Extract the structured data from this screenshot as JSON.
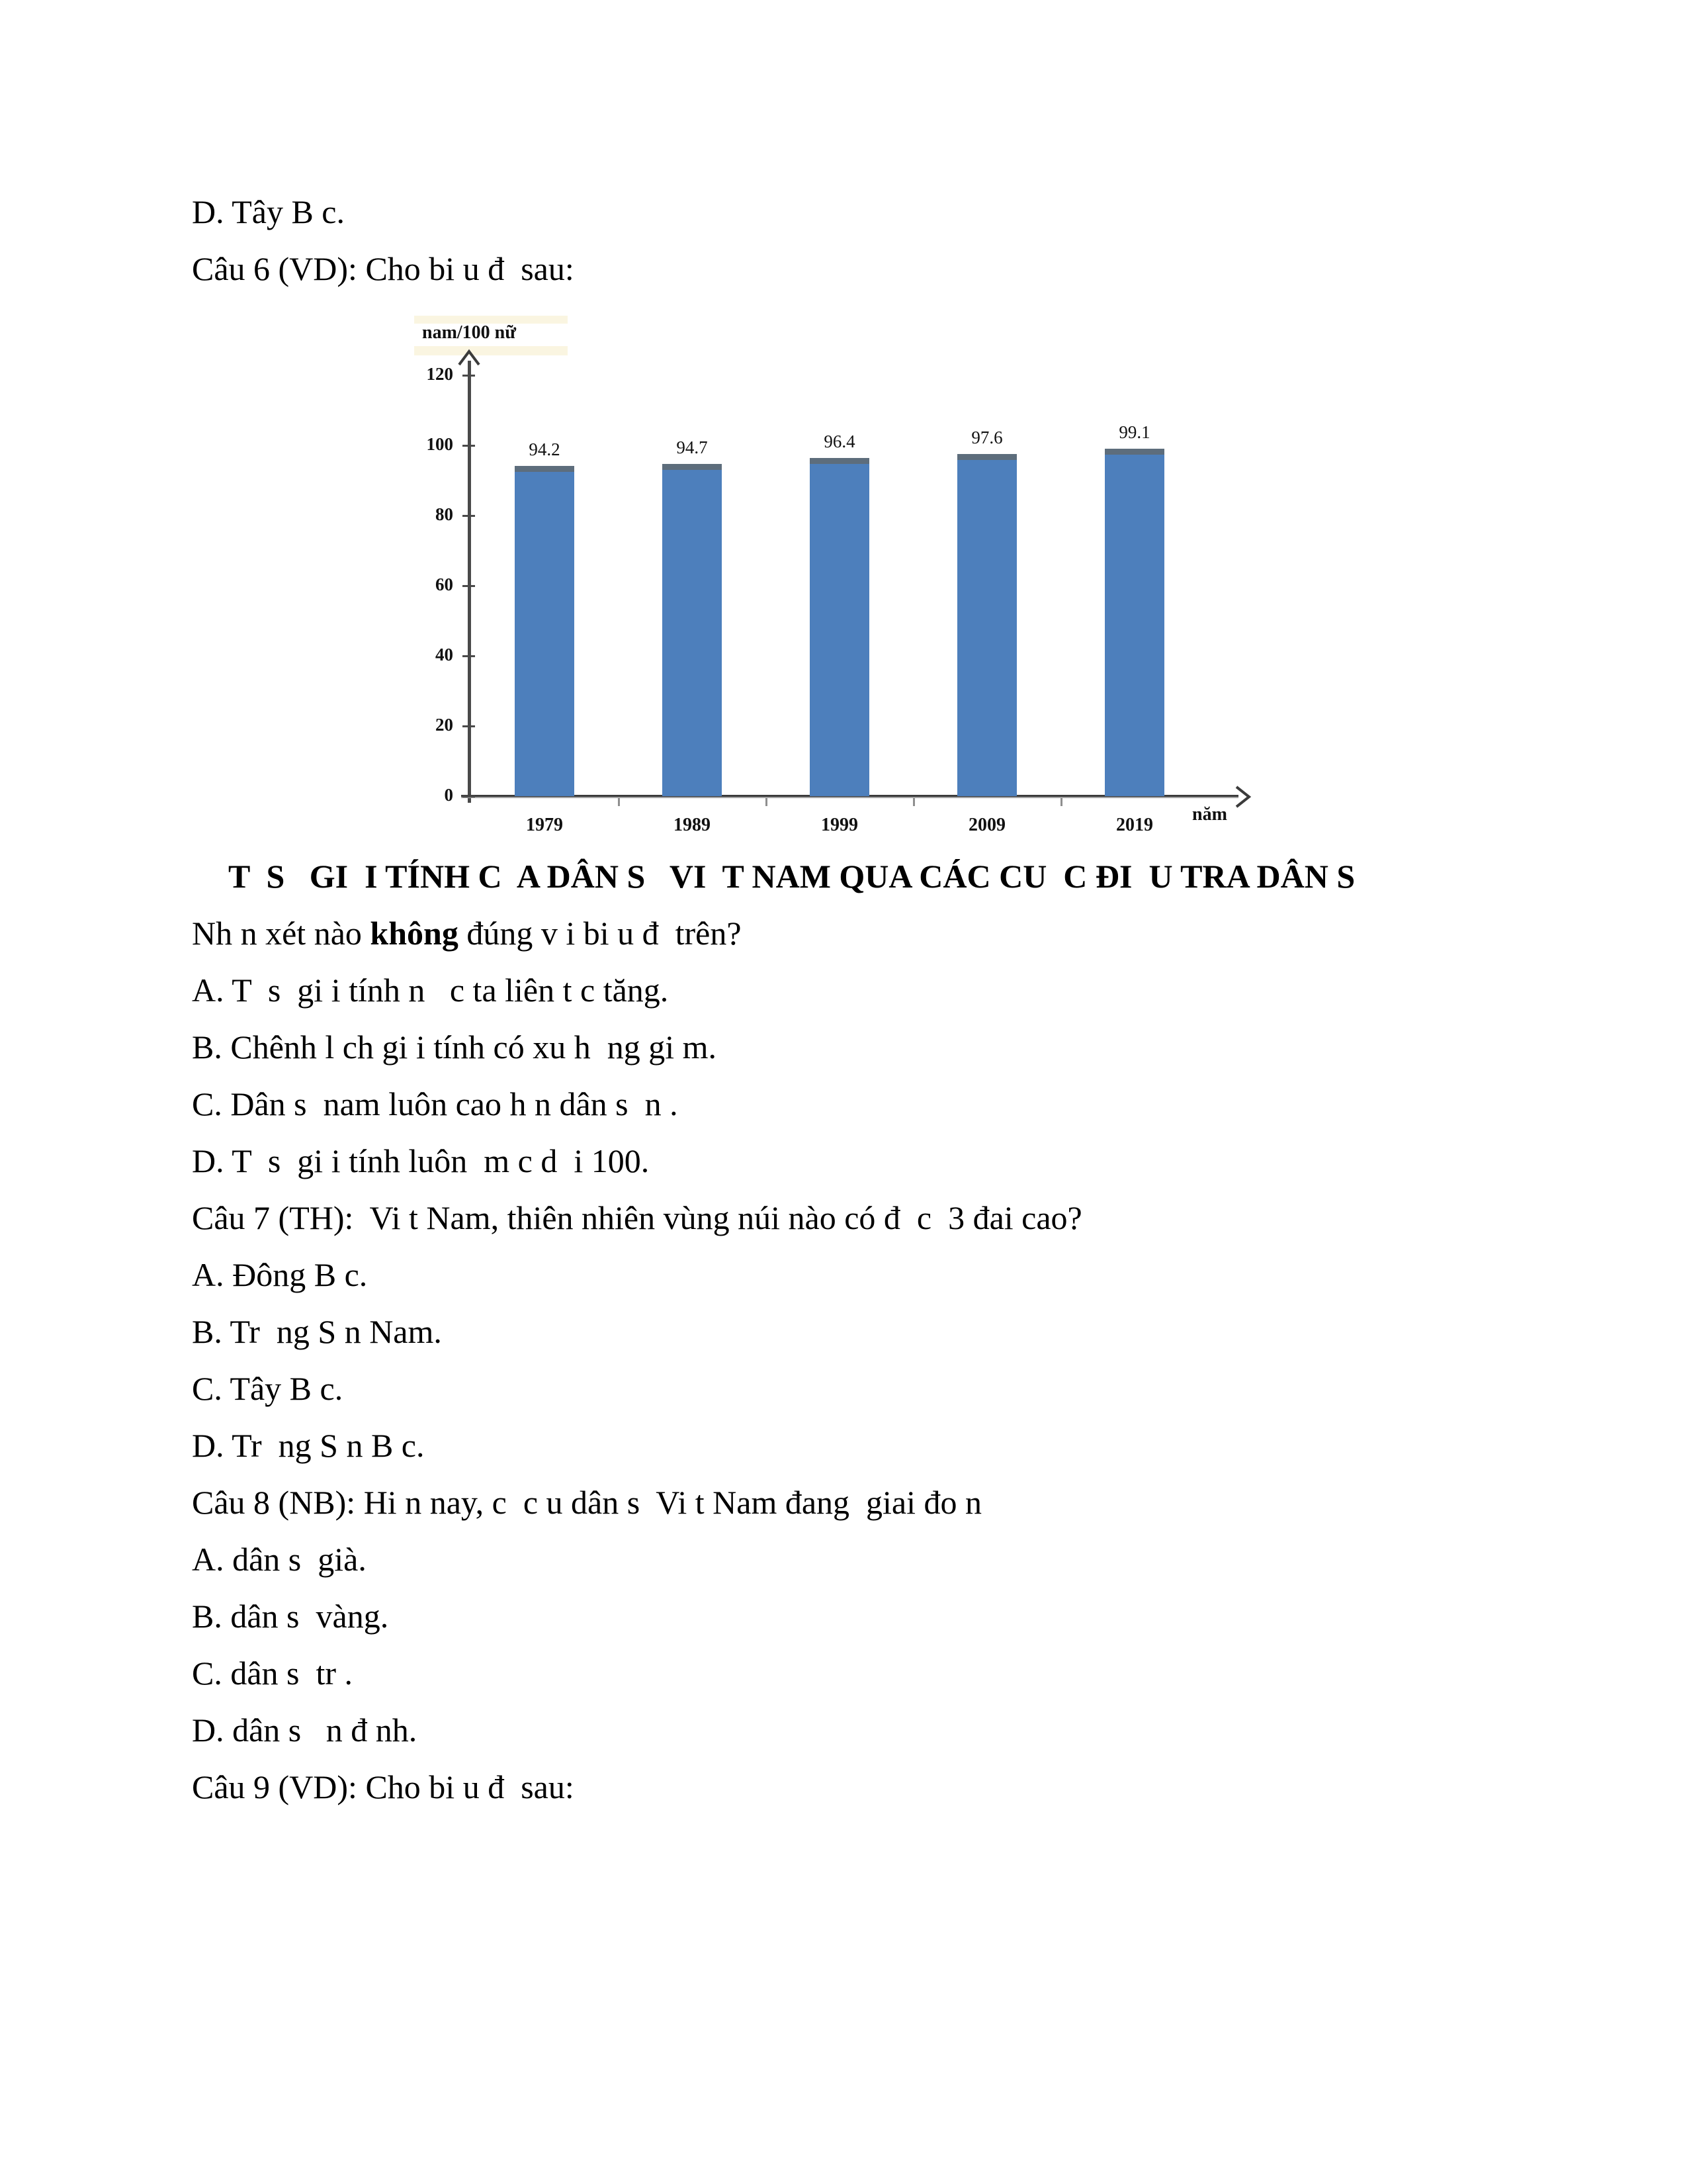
{
  "page": {
    "background": "#ffffff",
    "text_color": "#000000"
  },
  "doc": {
    "lines": [
      {
        "pre": "D. Tây B c."
      },
      {
        "pre": "Câu 6 (VD): Cho bi u đ  sau:"
      },
      {
        "pre": "Nh n xét nào ",
        "bold": "không",
        "post": " đúng v i bi u đ  trên?"
      },
      {
        "pre": "A. T  s  gi i tính n   c ta liên t c tăng."
      },
      {
        "pre": "B. Chênh l ch gi i tính có xu h  ng gi m."
      },
      {
        "pre": "C. Dân s  nam luôn cao h n dân s  n ."
      },
      {
        "pre": "D. T  s  gi i tính luôn  m c d  i 100."
      },
      {
        "pre": "Câu 7 (TH):  Vi t Nam, thiên nhiên vùng núi nào có đ  c  3 đai cao?"
      },
      {
        "pre": "A. Đông B c."
      },
      {
        "pre": "B. Tr  ng S n Nam."
      },
      {
        "pre": "C. Tây B c."
      },
      {
        "pre": "D. Tr  ng S n B c."
      },
      {
        "pre": "Câu 8 (NB): Hi n nay, c  c u dân s  Vi t Nam đang  giai đo n"
      },
      {
        "pre": "A. dân s  già."
      },
      {
        "pre": "B. dân s  vàng."
      },
      {
        "pre": "C. dân s  tr ."
      },
      {
        "pre": "D. dân s   n đ nh."
      },
      {
        "pre": "Câu 9 (VD): Cho bi u đ  sau:"
      }
    ]
  },
  "chart_data": {
    "type": "bar",
    "title": "T  S   GI  I TÍNH C  A DÂN S   VI  T NAM QUA CÁC CU  C ĐI  U TRA DÂN S",
    "y_axis_label": "nam/100 nữ",
    "x_axis_label": "năm",
    "categories": [
      "1979",
      "1989",
      "1999",
      "2009",
      "2019"
    ],
    "values": [
      94.2,
      94.7,
      96.4,
      97.6,
      99.1
    ],
    "value_labels": [
      "94.2",
      "94.7",
      "96.4",
      "97.6",
      "99.1"
    ],
    "y_ticks": [
      0,
      20,
      40,
      60,
      80,
      100,
      120
    ],
    "ylim": [
      0,
      120
    ],
    "grid": false,
    "legend": "none",
    "bar_color": "#4d7fbc",
    "bar_top_edge_color": "#5d6d7c",
    "axis_color": "#3b3b3b"
  }
}
